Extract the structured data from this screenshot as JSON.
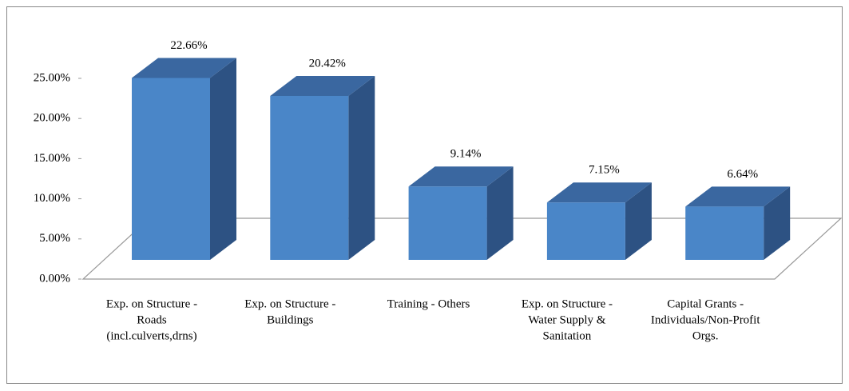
{
  "chart_data": {
    "type": "bar3d",
    "categories": [
      [
        "Exp. on Structure -",
        "Roads",
        "(incl.culverts,drns)"
      ],
      [
        "Exp. on Structure -",
        "Buildings"
      ],
      [
        "Training - Others"
      ],
      [
        "Exp. on Structure -",
        "Water Supply &",
        "Sanitation"
      ],
      [
        "Capital Grants -",
        "Individuals/Non-Profit",
        "Orgs."
      ]
    ],
    "values": [
      22.66,
      20.42,
      9.14,
      7.15,
      6.64
    ],
    "value_labels": [
      "22.66%",
      "20.42%",
      "9.14%",
      "7.15%",
      "6.64%"
    ],
    "color": "#4a86c8",
    "ylim": [
      0,
      25
    ],
    "yticks": [
      {
        "value": 0,
        "label": "0.00%"
      },
      {
        "value": 5,
        "label": "5.00%"
      },
      {
        "value": 10,
        "label": "10.00%"
      },
      {
        "value": 15,
        "label": "15.00%"
      },
      {
        "value": 20,
        "label": "20.00%"
      },
      {
        "value": 25,
        "label": "25.00%"
      }
    ]
  }
}
